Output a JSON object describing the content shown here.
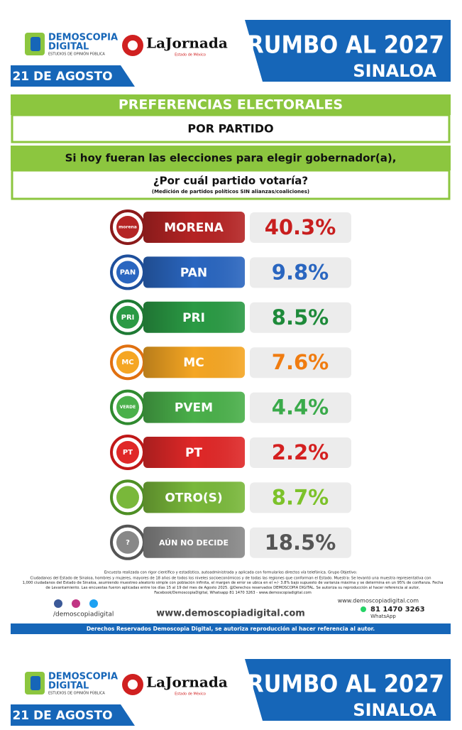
{
  "header": {
    "brand": "DEMOSCOPIA",
    "brand2": "DIGITAL",
    "brand_sub": "ESTUDIOS DE OPINIÓN PÚBLICA",
    "partner": "LaJornada",
    "partner_sub": "Estado de México",
    "title": "RUMBO AL 2027",
    "region": "SINALOA",
    "date": "21 DE AGOSTO"
  },
  "section": {
    "title": "PREFERENCIAS ELECTORALES",
    "subtitle": "POR PARTIDO",
    "question1": "Si hoy fueran las elecciones para elegir gobernador(a),",
    "question2": "¿Por cuál partido votaría?",
    "note": "(Medición de partidos políticos SIN alianzas/coaliciones)"
  },
  "rows": [
    {
      "logo": "morena",
      "label": "MORENA",
      "value": "40.3%"
    },
    {
      "logo": "PAN",
      "label": "PAN",
      "value": "9.8%"
    },
    {
      "logo": "PRI",
      "label": "PRI",
      "value": "8.5%"
    },
    {
      "logo": "MC",
      "label": "MC",
      "value": "7.6%"
    },
    {
      "logo": "VERDE",
      "label": "PVEM",
      "value": "4.4%"
    },
    {
      "logo": "PT",
      "label": "PT",
      "value": "2.2%"
    },
    {
      "logo": "",
      "label": "OTRO(S)",
      "value": "8.7%"
    },
    {
      "logo": "?",
      "label": "AÚN NO DECIDE",
      "value": "18.5%"
    }
  ],
  "footer": {
    "method1": "Encuesta realizada con rigor científico y estadístico, autoadministrada y aplicada con formularios directos vía telefónica. Grupo Objetivo:",
    "method2": "Ciudadanos del Estado de Sinaloa, hombres y mujeres, mayores de 18 años de todos los niveles socioeconómicos y de todas las regiones que conforman el Estado. Muestra: Se levantó una muestra representativa con",
    "method3": "1,000 ciudadanos del Estado de Sinaloa, asumiendo muestreo aleatorio simple con población infinita, el margen de error se ubica en el +/- 3.8% bajo supuesto de varianza máxima y se determina en un 95% de confianza. Fecha de Levantamiento. Las encuestas fueron aplicadas entre los días 15 al 19 del mes de Agosto 2025. @Derechos reservados DEMOSCOPIA DIGITAL. Se autoriza su reproducción al hacer referencia al autor, Facebook/DemoscopiaDigital, Whatsapp 81 1470 3263 - www.demoscopiadigital.com",
    "social": "/demoscopiadigital",
    "website": "www.demoscopiadigital.com",
    "website2": "www.demoscopiadigital.com",
    "phone": "81 1470 3263",
    "whatsapp": "WhatsApp",
    "rights": "Derechos Reservados Demoscopia Digital, se autoriza reproducción al hacer referencia al autor."
  }
}
